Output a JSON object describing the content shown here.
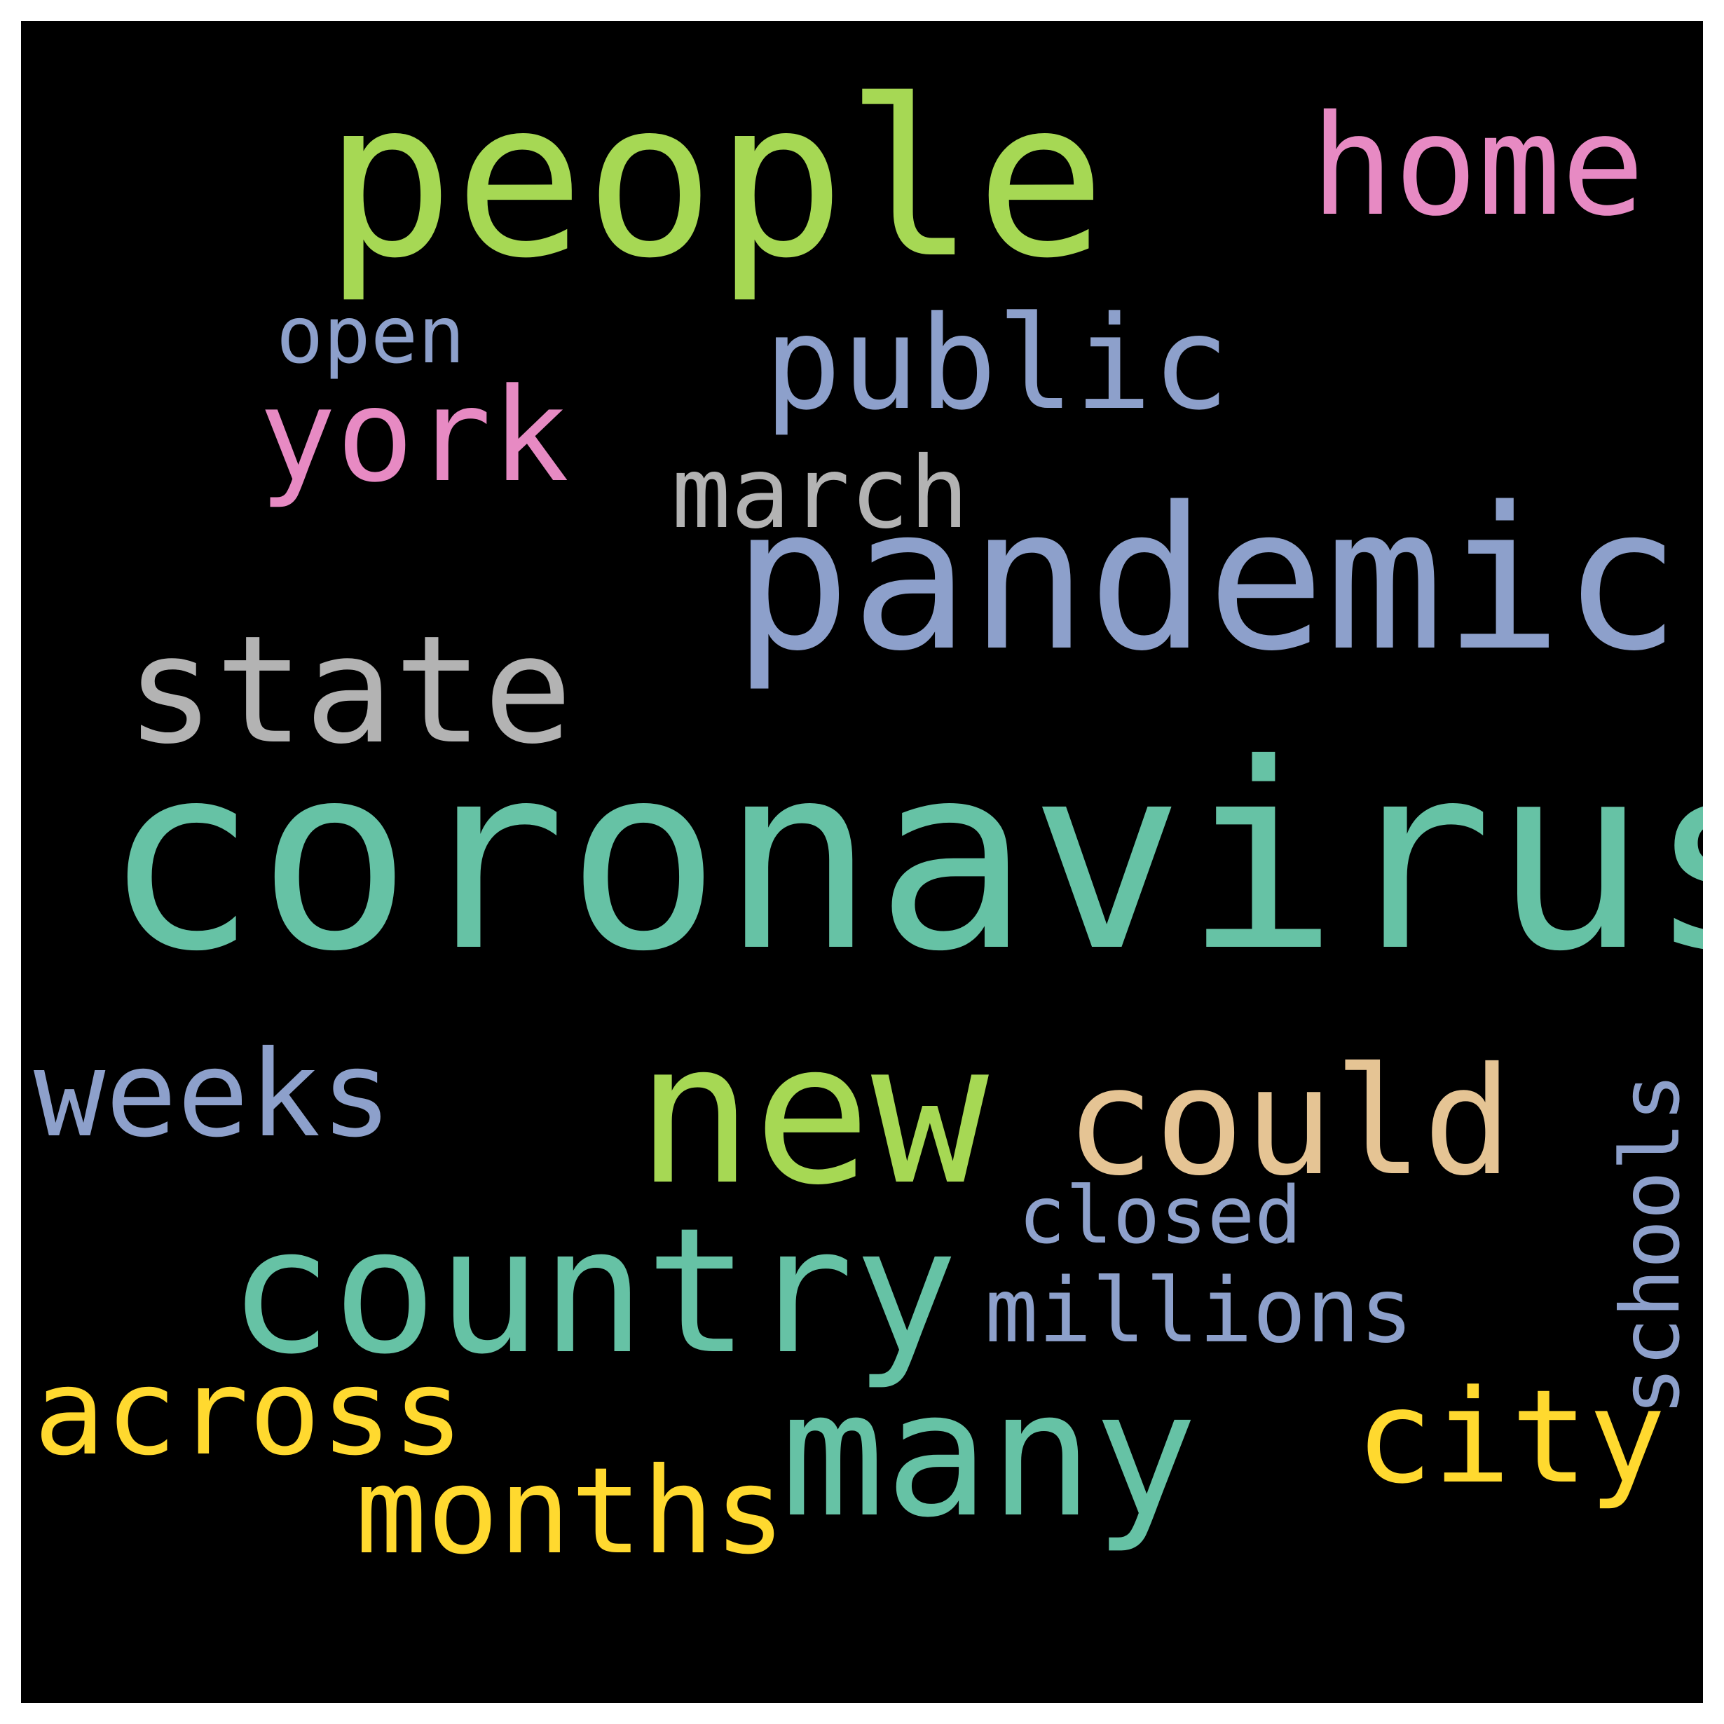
{
  "wordcloud": {
    "background": "#000000",
    "words": {
      "coronavirus": {
        "text": "coronavirus",
        "color": "#66c2a5"
      },
      "people": {
        "text": "people",
        "color": "#a6d854"
      },
      "pandemic": {
        "text": "pandemic",
        "color": "#8da0cb"
      },
      "new": {
        "text": "new",
        "color": "#a6d854"
      },
      "country": {
        "text": "country",
        "color": "#66c2a5"
      },
      "many": {
        "text": "many",
        "color": "#66c2a5"
      },
      "state": {
        "text": "state",
        "color": "#b3b3b3"
      },
      "could": {
        "text": "could",
        "color": "#e5c494"
      },
      "home": {
        "text": "home",
        "color": "#e78ac3"
      },
      "public": {
        "text": "public",
        "color": "#8da0cb"
      },
      "york": {
        "text": "york",
        "color": "#e78ac3"
      },
      "city": {
        "text": "city",
        "color": "#ffd92f"
      },
      "weeks": {
        "text": "weeks",
        "color": "#8da0cb"
      },
      "months": {
        "text": "months",
        "color": "#ffd92f"
      },
      "across": {
        "text": "across",
        "color": "#ffd92f"
      },
      "march": {
        "text": "march",
        "color": "#b3b3b3"
      },
      "millions": {
        "text": "millions",
        "color": "#8da0cb"
      },
      "closed": {
        "text": "closed",
        "color": "#8da0cb"
      },
      "open": {
        "text": "open",
        "color": "#8da0cb"
      },
      "schools": {
        "text": "schools",
        "color": "#8da0cb"
      }
    }
  }
}
